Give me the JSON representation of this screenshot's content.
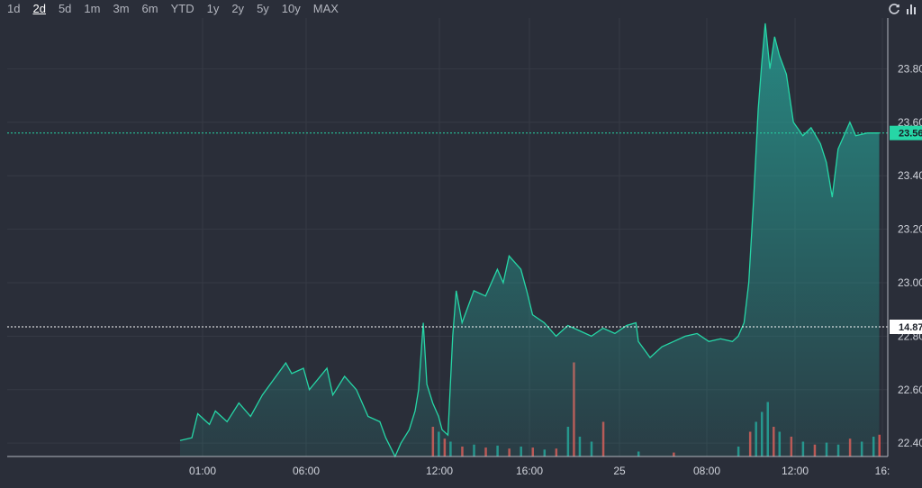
{
  "toolbar": {
    "ranges": [
      "1d",
      "2d",
      "5d",
      "1m",
      "3m",
      "6m",
      "YTD",
      "1y",
      "2y",
      "5y",
      "10y",
      "MAX"
    ],
    "active_range": "2d",
    "refresh_icon": "refresh-icon",
    "chart_type_icon": "bar-chart-icon"
  },
  "colors": {
    "background": "#2a2e39",
    "line": "#26d6a6",
    "area": "#26a69a",
    "grid": "#363a45",
    "volume_up": "#26a69a",
    "volume_down": "#ef5350",
    "prev_close_line": "#ffffff"
  },
  "price_tags": {
    "current": "23.56",
    "previous_close": "14.87"
  },
  "chart_data": {
    "type": "area",
    "title": "",
    "xlabel": "",
    "ylabel": "",
    "ylim": [
      22.35,
      23.99
    ],
    "y_ticks": [
      "22.40",
      "22.60",
      "22.80",
      "23.00",
      "23.20",
      "23.40",
      "23.60",
      "23.80"
    ],
    "x_ticks": [
      "01:00",
      "06:00",
      "12:00",
      "16:00",
      "25",
      "08:00",
      "12:00",
      "16:"
    ],
    "grid": true,
    "current_price": 23.56,
    "previous_close": 14.87,
    "series": [
      {
        "values": [
          [
            0.0,
            22.41
          ],
          [
            1.0,
            22.42
          ],
          [
            1.5,
            22.51
          ],
          [
            2.5,
            22.47
          ],
          [
            3.0,
            22.52
          ],
          [
            4.0,
            22.48
          ],
          [
            5.0,
            22.55
          ],
          [
            6.0,
            22.5
          ],
          [
            7.0,
            22.58
          ],
          [
            8.0,
            22.64
          ],
          [
            9.0,
            22.7
          ],
          [
            9.5,
            22.66
          ],
          [
            10.5,
            22.68
          ],
          [
            11.0,
            22.6
          ],
          [
            12.5,
            22.68
          ],
          [
            13.0,
            22.58
          ],
          [
            14.0,
            22.65
          ],
          [
            15.0,
            22.6
          ],
          [
            15.5,
            22.55
          ],
          [
            16.0,
            22.5
          ],
          [
            17.0,
            22.48
          ],
          [
            17.5,
            22.42
          ],
          [
            18.3,
            22.35
          ],
          [
            18.8,
            22.4
          ],
          [
            19.5,
            22.45
          ],
          [
            20.0,
            22.52
          ],
          [
            20.3,
            22.6
          ],
          [
            20.7,
            22.85
          ],
          [
            21.0,
            22.62
          ],
          [
            21.5,
            22.55
          ],
          [
            22.0,
            22.5
          ],
          [
            22.3,
            22.45
          ],
          [
            22.8,
            22.43
          ],
          [
            23.2,
            22.8
          ],
          [
            23.5,
            22.97
          ],
          [
            24.0,
            22.85
          ],
          [
            25.0,
            22.97
          ],
          [
            26.0,
            22.95
          ],
          [
            27.0,
            23.05
          ],
          [
            27.5,
            23.0
          ],
          [
            28.0,
            23.1
          ],
          [
            29.0,
            23.05
          ],
          [
            29.5,
            22.97
          ],
          [
            30.0,
            22.88
          ],
          [
            31.0,
            22.85
          ],
          [
            32.0,
            22.8
          ],
          [
            33.0,
            22.84
          ],
          [
            34.0,
            22.82
          ],
          [
            35.0,
            22.8
          ],
          [
            36.0,
            22.83
          ],
          [
            37.0,
            22.81
          ],
          [
            38.0,
            22.84
          ],
          [
            38.8,
            22.85
          ],
          [
            39.0,
            22.78
          ],
          [
            40.0,
            22.72
          ],
          [
            41.0,
            22.76
          ],
          [
            42.0,
            22.78
          ],
          [
            43.0,
            22.8
          ],
          [
            44.0,
            22.81
          ],
          [
            45.0,
            22.78
          ],
          [
            46.0,
            22.79
          ],
          [
            47.0,
            22.78
          ],
          [
            47.5,
            22.8
          ],
          [
            48.0,
            22.85
          ],
          [
            48.4,
            23.0
          ],
          [
            48.8,
            23.3
          ],
          [
            49.2,
            23.65
          ],
          [
            49.5,
            23.82
          ],
          [
            49.8,
            23.97
          ],
          [
            50.2,
            23.8
          ],
          [
            50.6,
            23.92
          ],
          [
            51.0,
            23.85
          ],
          [
            51.6,
            23.78
          ],
          [
            52.2,
            23.6
          ],
          [
            53.0,
            23.55
          ],
          [
            53.7,
            23.58
          ],
          [
            54.5,
            23.52
          ],
          [
            55.0,
            23.45
          ],
          [
            55.5,
            23.32
          ],
          [
            56.0,
            23.5
          ],
          [
            57.0,
            23.6
          ],
          [
            57.5,
            23.55
          ],
          [
            58.5,
            23.56
          ],
          [
            59.5,
            23.56
          ]
        ]
      }
    ],
    "volume": [
      {
        "x": 21.5,
        "v": 0.3,
        "dir": "down"
      },
      {
        "x": 22.0,
        "v": 0.25,
        "dir": "up"
      },
      {
        "x": 22.5,
        "v": 0.18,
        "dir": "down"
      },
      {
        "x": 23.0,
        "v": 0.15,
        "dir": "up"
      },
      {
        "x": 24.0,
        "v": 0.1,
        "dir": "down"
      },
      {
        "x": 25.0,
        "v": 0.12,
        "dir": "up"
      },
      {
        "x": 26.0,
        "v": 0.09,
        "dir": "down"
      },
      {
        "x": 27.0,
        "v": 0.11,
        "dir": "up"
      },
      {
        "x": 28.0,
        "v": 0.08,
        "dir": "down"
      },
      {
        "x": 29.0,
        "v": 0.1,
        "dir": "up"
      },
      {
        "x": 30.0,
        "v": 0.09,
        "dir": "down"
      },
      {
        "x": 31.0,
        "v": 0.07,
        "dir": "up"
      },
      {
        "x": 32.0,
        "v": 0.08,
        "dir": "down"
      },
      {
        "x": 33.0,
        "v": 0.3,
        "dir": "up"
      },
      {
        "x": 33.5,
        "v": 0.95,
        "dir": "down"
      },
      {
        "x": 34.0,
        "v": 0.2,
        "dir": "up"
      },
      {
        "x": 35.0,
        "v": 0.15,
        "dir": "up"
      },
      {
        "x": 36.0,
        "v": 0.35,
        "dir": "down"
      },
      {
        "x": 39.0,
        "v": 0.05,
        "dir": "up"
      },
      {
        "x": 42.0,
        "v": 0.04,
        "dir": "down"
      },
      {
        "x": 47.5,
        "v": 0.1,
        "dir": "up"
      },
      {
        "x": 48.5,
        "v": 0.25,
        "dir": "down"
      },
      {
        "x": 49.0,
        "v": 0.35,
        "dir": "up"
      },
      {
        "x": 49.5,
        "v": 0.45,
        "dir": "up"
      },
      {
        "x": 50.0,
        "v": 0.55,
        "dir": "up"
      },
      {
        "x": 50.5,
        "v": 0.3,
        "dir": "down"
      },
      {
        "x": 51.0,
        "v": 0.25,
        "dir": "up"
      },
      {
        "x": 52.0,
        "v": 0.2,
        "dir": "down"
      },
      {
        "x": 53.0,
        "v": 0.15,
        "dir": "up"
      },
      {
        "x": 54.0,
        "v": 0.12,
        "dir": "down"
      },
      {
        "x": 55.0,
        "v": 0.14,
        "dir": "up"
      },
      {
        "x": 56.0,
        "v": 0.12,
        "dir": "up"
      },
      {
        "x": 57.0,
        "v": 0.18,
        "dir": "down"
      },
      {
        "x": 58.0,
        "v": 0.15,
        "dir": "up"
      },
      {
        "x": 59.0,
        "v": 0.2,
        "dir": "up"
      },
      {
        "x": 59.5,
        "v": 0.22,
        "dir": "down"
      }
    ]
  }
}
